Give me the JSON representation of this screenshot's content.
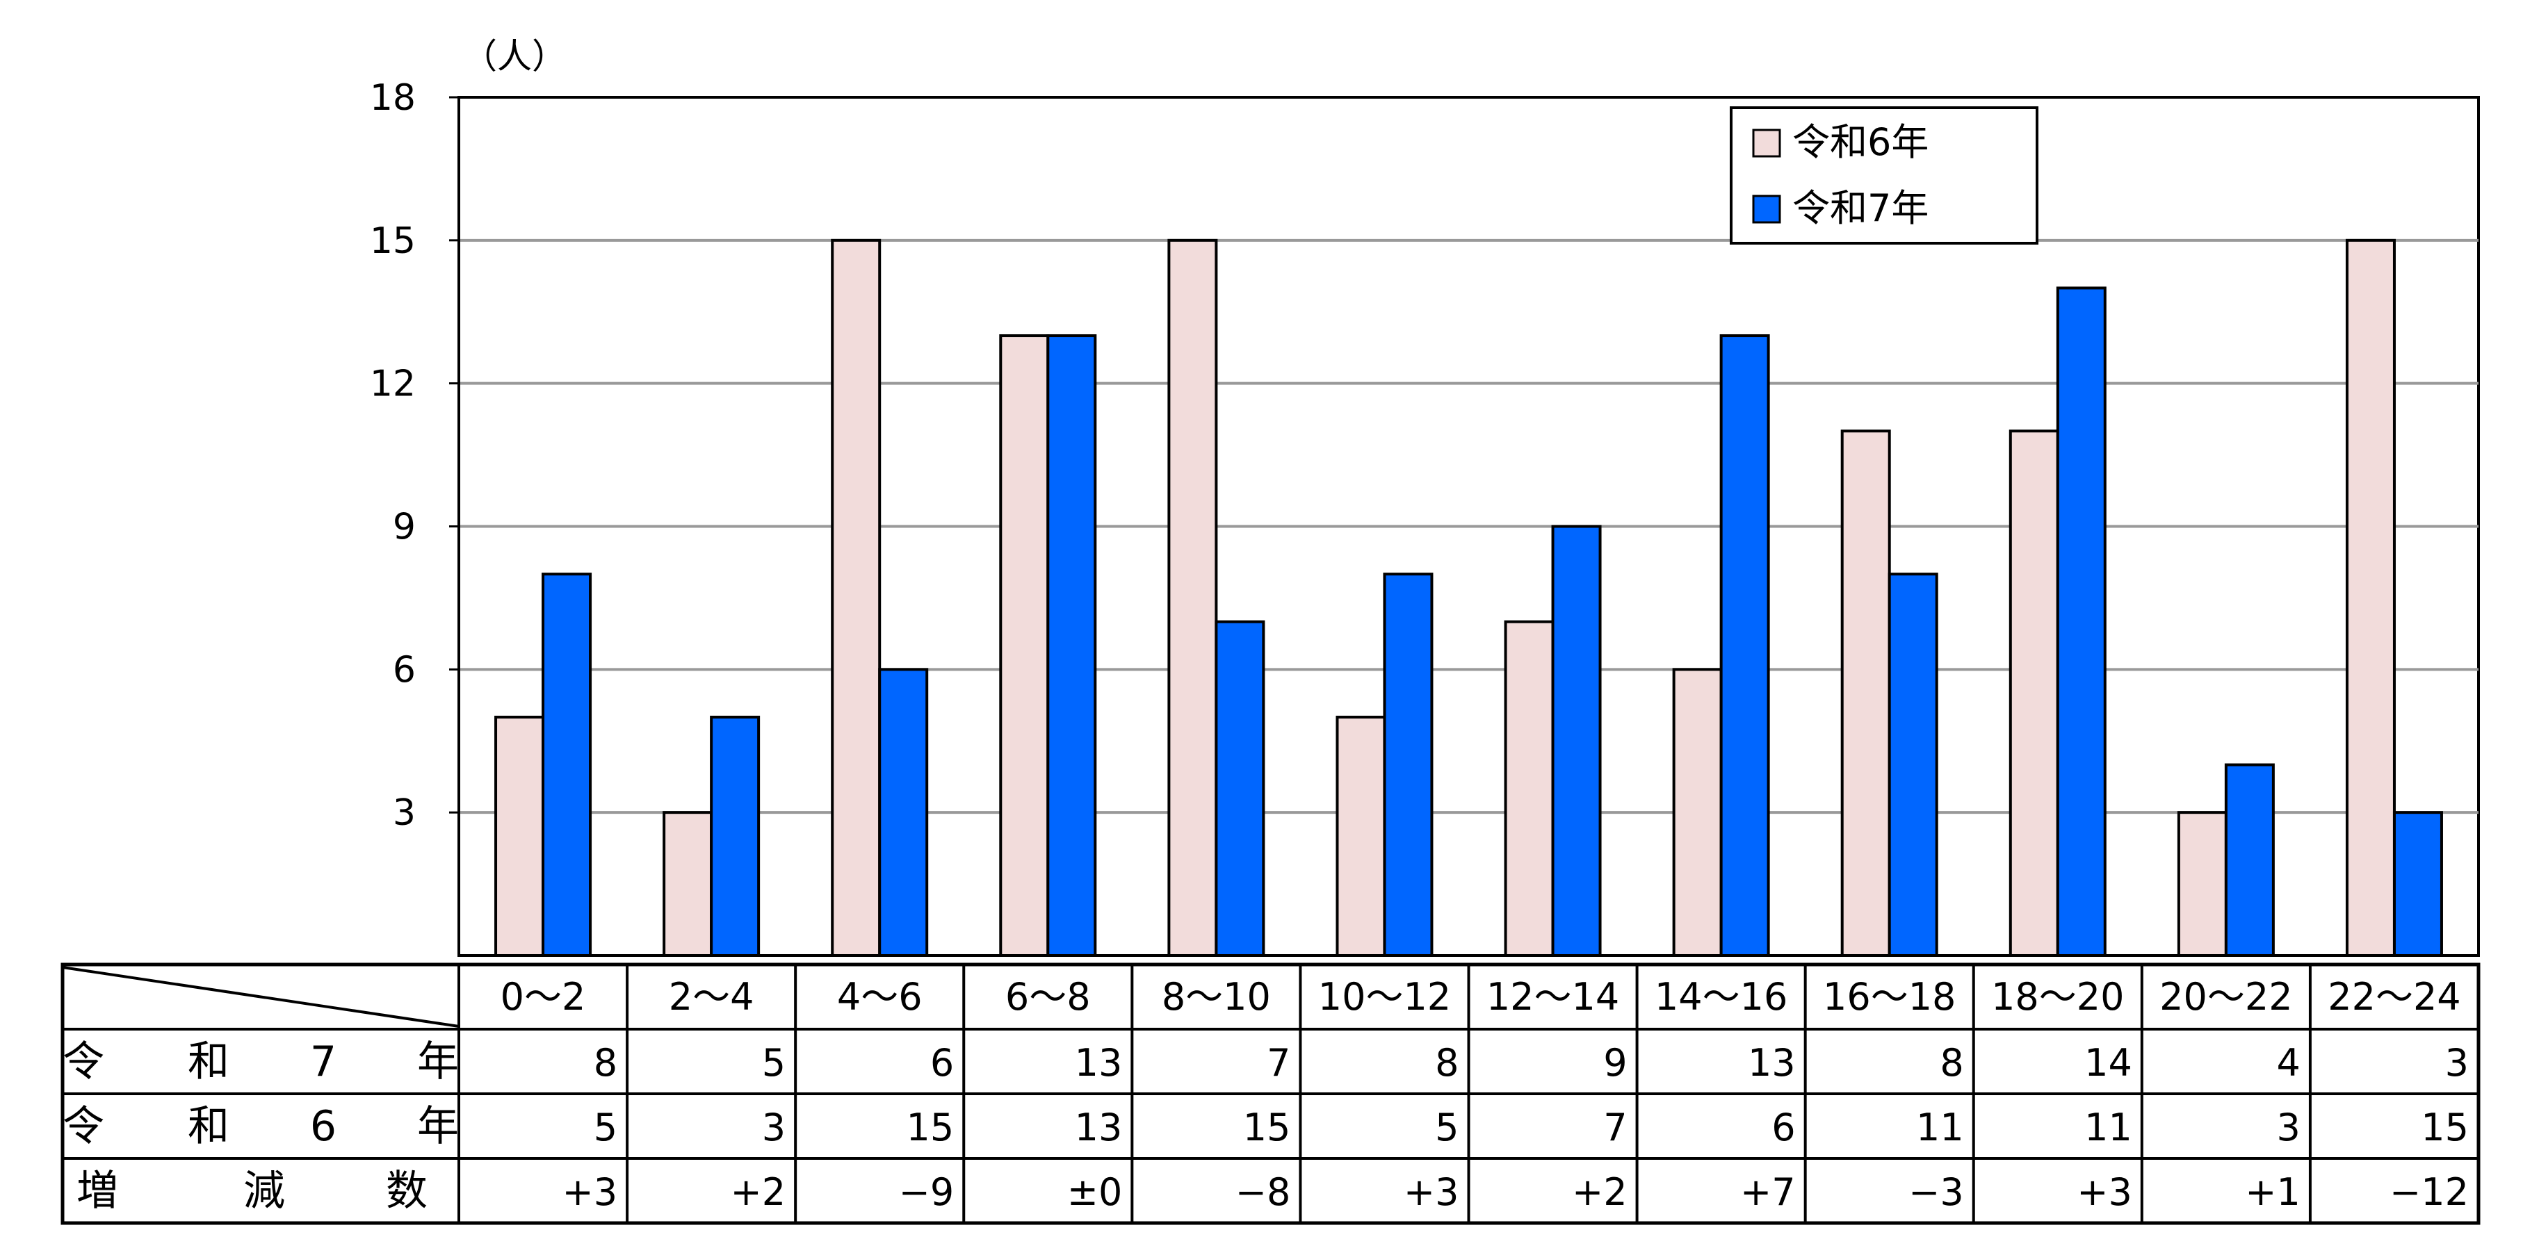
{
  "chart_data": {
    "type": "bar",
    "unit_label": "（人）",
    "y_ticks": [
      3,
      6,
      9,
      12,
      15,
      18
    ],
    "ylim": [
      0,
      18
    ],
    "grid": true,
    "legend_position": "top-right",
    "categories": [
      "0～2",
      "2～4",
      "4～6",
      "6～8",
      "8～10",
      "10～12",
      "12～14",
      "14～16",
      "16～18",
      "18～20",
      "20～22",
      "22～24"
    ],
    "series": [
      {
        "name": "令和6年",
        "color": "#f2dcdb",
        "values": [
          5,
          3,
          15,
          13,
          15,
          5,
          7,
          6,
          11,
          11,
          3,
          15
        ]
      },
      {
        "name": "令和7年",
        "color": "#0066ff",
        "values": [
          8,
          5,
          6,
          13,
          7,
          8,
          9,
          13,
          8,
          14,
          4,
          3
        ]
      }
    ],
    "table": {
      "rows": [
        {
          "label_chars": [
            "令",
            "和",
            "7",
            "年"
          ],
          "values": [
            "8",
            "5",
            "6",
            "13",
            "7",
            "8",
            "9",
            "13",
            "8",
            "14",
            "4",
            "3"
          ]
        },
        {
          "label_chars": [
            "令",
            "和",
            "6",
            "年"
          ],
          "values": [
            "5",
            "3",
            "15",
            "13",
            "15",
            "5",
            "7",
            "6",
            "11",
            "11",
            "3",
            "15"
          ]
        },
        {
          "label_chars": [
            "増",
            "減",
            "数"
          ],
          "values": [
            "+3",
            "+2",
            "−9",
            "±0",
            "−8",
            "+3",
            "+2",
            "+7",
            "−3",
            "+3",
            "+1",
            "−12"
          ]
        }
      ]
    }
  }
}
